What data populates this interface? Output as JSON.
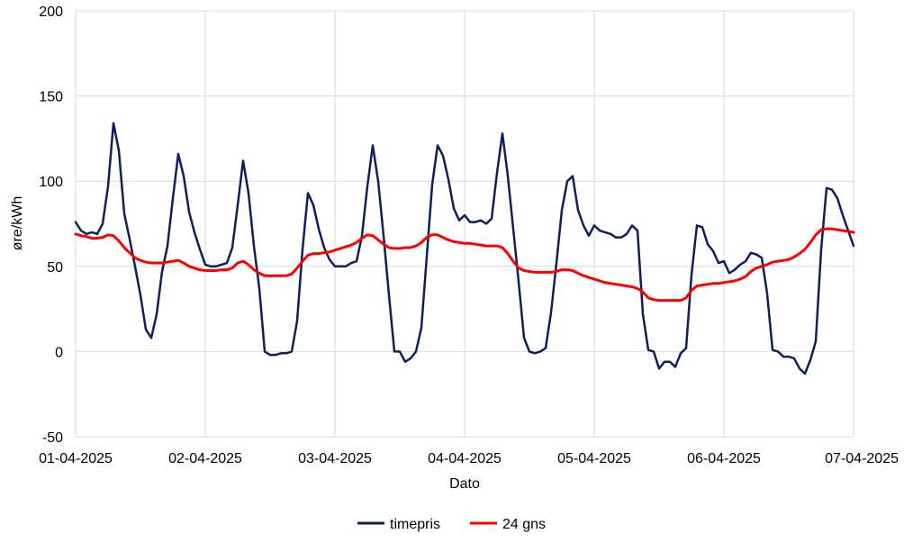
{
  "chart_data": {
    "type": "line",
    "xlabel": "Dato",
    "ylabel": "øre/kWh",
    "ylim": [
      -50,
      200
    ],
    "yticks": [
      -50,
      0,
      50,
      100,
      150,
      200
    ],
    "xlim": [
      0,
      144
    ],
    "xticks": [
      {
        "x": 0,
        "label": "01-04-2025"
      },
      {
        "x": 24,
        "label": "02-04-2025"
      },
      {
        "x": 48,
        "label": "03-04-2025"
      },
      {
        "x": 72,
        "label": "04-04-2025"
      },
      {
        "x": 96,
        "label": "05-04-2025"
      },
      {
        "x": 120,
        "label": "06-04-2025"
      },
      {
        "x": 144,
        "label": "07-04-2025"
      }
    ],
    "grid": "vertical-and-horizontal",
    "legend": "bottom",
    "series": [
      {
        "name": "timepris",
        "color": "#0d1f5c",
        "points": [
          [
            0,
            76
          ],
          [
            1,
            71
          ],
          [
            2,
            69
          ],
          [
            3,
            70
          ],
          [
            4,
            69
          ],
          [
            5,
            75
          ],
          [
            6,
            97
          ],
          [
            7,
            134
          ],
          [
            8,
            118
          ],
          [
            9,
            81
          ],
          [
            10,
            66
          ],
          [
            11,
            50
          ],
          [
            12,
            33
          ],
          [
            13,
            13
          ],
          [
            14,
            8
          ],
          [
            15,
            22
          ],
          [
            16,
            47
          ],
          [
            17,
            62
          ],
          [
            18,
            90
          ],
          [
            19,
            116
          ],
          [
            20,
            103
          ],
          [
            21,
            82
          ],
          [
            22,
            70
          ],
          [
            23,
            60
          ],
          [
            24,
            51
          ],
          [
            25,
            50
          ],
          [
            26,
            50
          ],
          [
            27,
            51
          ],
          [
            28,
            52
          ],
          [
            29,
            61
          ],
          [
            30,
            86
          ],
          [
            31,
            112
          ],
          [
            32,
            93
          ],
          [
            33,
            62
          ],
          [
            34,
            37
          ],
          [
            35,
            0
          ],
          [
            36,
            -2
          ],
          [
            37,
            -2
          ],
          [
            38,
            -1
          ],
          [
            39,
            -1
          ],
          [
            40,
            0
          ],
          [
            41,
            18
          ],
          [
            42,
            60
          ],
          [
            43,
            93
          ],
          [
            44,
            86
          ],
          [
            45,
            72
          ],
          [
            46,
            61
          ],
          [
            47,
            54
          ],
          [
            48,
            50
          ],
          [
            49,
            50
          ],
          [
            50,
            50
          ],
          [
            51,
            52
          ],
          [
            52,
            53
          ],
          [
            53,
            68
          ],
          [
            54,
            97
          ],
          [
            55,
            121
          ],
          [
            56,
            100
          ],
          [
            57,
            68
          ],
          [
            58,
            33
          ],
          [
            59,
            0
          ],
          [
            60,
            0
          ],
          [
            61,
            -6
          ],
          [
            62,
            -4
          ],
          [
            63,
            0
          ],
          [
            64,
            14
          ],
          [
            65,
            56
          ],
          [
            66,
            98
          ],
          [
            67,
            121
          ],
          [
            68,
            115
          ],
          [
            69,
            101
          ],
          [
            70,
            84
          ],
          [
            71,
            77
          ],
          [
            72,
            80
          ],
          [
            73,
            76
          ],
          [
            74,
            76
          ],
          [
            75,
            77
          ],
          [
            76,
            75
          ],
          [
            77,
            78
          ],
          [
            78,
            105
          ],
          [
            79,
            128
          ],
          [
            80,
            103
          ],
          [
            81,
            72
          ],
          [
            82,
            41
          ],
          [
            83,
            8
          ],
          [
            84,
            0
          ],
          [
            85,
            -1
          ],
          [
            86,
            0
          ],
          [
            87,
            2
          ],
          [
            88,
            23
          ],
          [
            89,
            52
          ],
          [
            90,
            83
          ],
          [
            91,
            100
          ],
          [
            92,
            103
          ],
          [
            93,
            83
          ],
          [
            94,
            74
          ],
          [
            95,
            68
          ],
          [
            96,
            74
          ],
          [
            97,
            71
          ],
          [
            98,
            70
          ],
          [
            99,
            69
          ],
          [
            100,
            67
          ],
          [
            101,
            67
          ],
          [
            102,
            69
          ],
          [
            103,
            74
          ],
          [
            104,
            71
          ],
          [
            105,
            22
          ],
          [
            106,
            1
          ],
          [
            107,
            0
          ],
          [
            108,
            -10
          ],
          [
            109,
            -6
          ],
          [
            110,
            -6
          ],
          [
            111,
            -9
          ],
          [
            112,
            -1
          ],
          [
            113,
            2
          ],
          [
            114,
            45
          ],
          [
            115,
            74
          ],
          [
            116,
            73
          ],
          [
            117,
            63
          ],
          [
            118,
            59
          ],
          [
            119,
            52
          ],
          [
            120,
            53
          ],
          [
            121,
            46
          ],
          [
            122,
            48
          ],
          [
            123,
            51
          ],
          [
            124,
            53
          ],
          [
            125,
            58
          ],
          [
            126,
            57
          ],
          [
            127,
            55
          ],
          [
            128,
            34
          ],
          [
            129,
            1
          ],
          [
            130,
            0
          ],
          [
            131,
            -3
          ],
          [
            132,
            -3
          ],
          [
            133,
            -4
          ],
          [
            134,
            -10
          ],
          [
            135,
            -13
          ],
          [
            136,
            -5
          ],
          [
            137,
            6
          ],
          [
            138,
            60
          ],
          [
            139,
            96
          ],
          [
            140,
            95
          ],
          [
            141,
            90
          ],
          [
            142,
            80
          ],
          [
            143,
            71
          ],
          [
            144,
            62
          ]
        ]
      },
      {
        "name": "24 gns",
        "color": "#ff0000",
        "points": [
          [
            0,
            69
          ],
          [
            1,
            68
          ],
          [
            2,
            67.5
          ],
          [
            3,
            66.5
          ],
          [
            4,
            66.5
          ],
          [
            5,
            67
          ],
          [
            6,
            68.5
          ],
          [
            7,
            68
          ],
          [
            8,
            65
          ],
          [
            9,
            61
          ],
          [
            10,
            58
          ],
          [
            11,
            55
          ],
          [
            12,
            53.5
          ],
          [
            13,
            52.5
          ],
          [
            14,
            52
          ],
          [
            15,
            52
          ],
          [
            16,
            52
          ],
          [
            17,
            52.5
          ],
          [
            18,
            53
          ],
          [
            19,
            53.5
          ],
          [
            20,
            52
          ],
          [
            21,
            50
          ],
          [
            22,
            49
          ],
          [
            23,
            48
          ],
          [
            24,
            47.5
          ],
          [
            25,
            47.5
          ],
          [
            26,
            47.5
          ],
          [
            27,
            48
          ],
          [
            28,
            48
          ],
          [
            29,
            49
          ],
          [
            30,
            52
          ],
          [
            31,
            53
          ],
          [
            32,
            51
          ],
          [
            33,
            48
          ],
          [
            34,
            46
          ],
          [
            35,
            44.5
          ],
          [
            36,
            44.5
          ],
          [
            37,
            44.5
          ],
          [
            38,
            44.5
          ],
          [
            39,
            44.5
          ],
          [
            40,
            45.5
          ],
          [
            41,
            49
          ],
          [
            42,
            53
          ],
          [
            43,
            56.5
          ],
          [
            44,
            57.5
          ],
          [
            45,
            57.5
          ],
          [
            46,
            58
          ],
          [
            47,
            58.5
          ],
          [
            48,
            59.5
          ],
          [
            49,
            60.5
          ],
          [
            50,
            61.5
          ],
          [
            51,
            62.5
          ],
          [
            52,
            64
          ],
          [
            53,
            66.5
          ],
          [
            54,
            68.5
          ],
          [
            55,
            68
          ],
          [
            56,
            65.5
          ],
          [
            57,
            63
          ],
          [
            58,
            61
          ],
          [
            59,
            60.5
          ],
          [
            60,
            60.5
          ],
          [
            61,
            61
          ],
          [
            62,
            61
          ],
          [
            63,
            62
          ],
          [
            64,
            64
          ],
          [
            65,
            67
          ],
          [
            66,
            68.5
          ],
          [
            67,
            68.5
          ],
          [
            68,
            67
          ],
          [
            69,
            65.5
          ],
          [
            70,
            64.5
          ],
          [
            71,
            64
          ],
          [
            72,
            63.5
          ],
          [
            73,
            63.5
          ],
          [
            74,
            63
          ],
          [
            75,
            62.5
          ],
          [
            76,
            62
          ],
          [
            77,
            62
          ],
          [
            78,
            62
          ],
          [
            79,
            61
          ],
          [
            80,
            57.5
          ],
          [
            81,
            53
          ],
          [
            82,
            49
          ],
          [
            83,
            47.5
          ],
          [
            84,
            47
          ],
          [
            85,
            46.5
          ],
          [
            86,
            46.5
          ],
          [
            87,
            46.5
          ],
          [
            88,
            46.5
          ],
          [
            89,
            47
          ],
          [
            90,
            48
          ],
          [
            91,
            48
          ],
          [
            92,
            47.5
          ],
          [
            93,
            46
          ],
          [
            94,
            44.5
          ],
          [
            95,
            43.5
          ],
          [
            96,
            42.5
          ],
          [
            97,
            41.5
          ],
          [
            98,
            40.5
          ],
          [
            99,
            40
          ],
          [
            100,
            39.5
          ],
          [
            101,
            39
          ],
          [
            102,
            38.5
          ],
          [
            103,
            38
          ],
          [
            104,
            37
          ],
          [
            105,
            35
          ],
          [
            106,
            31.5
          ],
          [
            107,
            30.5
          ],
          [
            108,
            30
          ],
          [
            109,
            30
          ],
          [
            110,
            30
          ],
          [
            111,
            30
          ],
          [
            112,
            30
          ],
          [
            113,
            31.5
          ],
          [
            114,
            36
          ],
          [
            115,
            38.5
          ],
          [
            116,
            39
          ],
          [
            117,
            39.5
          ],
          [
            118,
            40
          ],
          [
            119,
            40
          ],
          [
            120,
            40.5
          ],
          [
            121,
            41
          ],
          [
            122,
            41.5
          ],
          [
            123,
            42.5
          ],
          [
            124,
            44
          ],
          [
            125,
            47
          ],
          [
            126,
            49
          ],
          [
            127,
            50
          ],
          [
            128,
            51
          ],
          [
            129,
            52.5
          ],
          [
            130,
            53
          ],
          [
            131,
            53.5
          ],
          [
            132,
            54
          ],
          [
            133,
            55.5
          ],
          [
            134,
            57.5
          ],
          [
            135,
            60
          ],
          [
            136,
            64
          ],
          [
            137,
            68.5
          ],
          [
            138,
            71.5
          ],
          [
            139,
            72
          ],
          [
            140,
            72
          ],
          [
            141,
            71.5
          ],
          [
            142,
            71
          ],
          [
            143,
            70.5
          ],
          [
            144,
            70
          ]
        ]
      }
    ]
  }
}
